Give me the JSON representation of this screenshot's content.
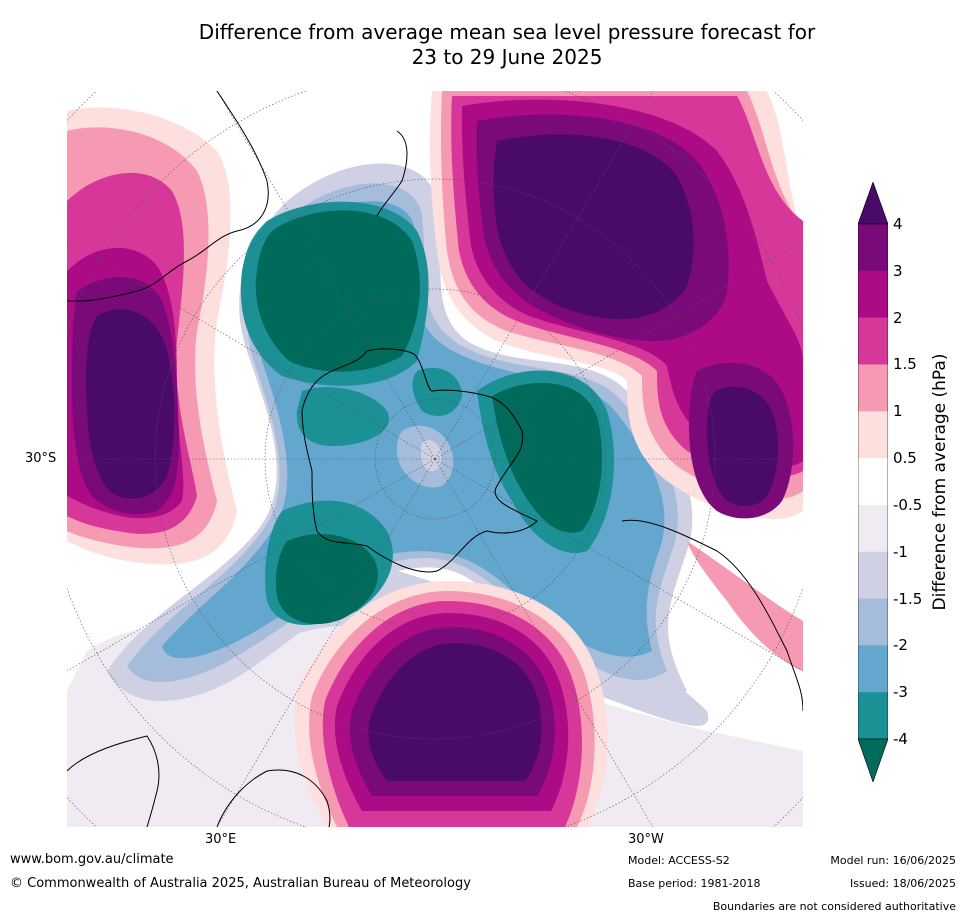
{
  "title_line1": "Difference from average mean sea level pressure forecast for",
  "title_line2": "23 to 29 June 2025",
  "map": {
    "lat_label": "30°S",
    "lon_label_east": "30°E",
    "lon_label_west": "30°W"
  },
  "colorbar": {
    "label": "Difference from average (hPa)",
    "ticks": [
      "4",
      "3",
      "2",
      "1.5",
      "1",
      "0.5",
      "-0.5",
      "-1",
      "-1.5",
      "-2",
      "-3",
      "-4"
    ],
    "colors": [
      "#4a0a6a",
      "#7a0a7a",
      "#ad0a86",
      "#d8379a",
      "#f59ab2",
      "#fde0dd",
      "#ffffff",
      "#f0ebf3",
      "#cfd0e4",
      "#a6bcdb",
      "#63a7cf",
      "#1b9095",
      "#006b5b"
    ]
  },
  "footer": {
    "website": "www.bom.gov.au/climate",
    "copyright": "© Commonwealth of Australia 2025, Australian Bureau of Meteorology",
    "model": "Model: ACCESS-S2",
    "base_period": "Base period: 1981-2018",
    "model_run": "Model run: 16/06/2025",
    "issued": "Issued: 18/06/2025",
    "disclaimer": "Boundaries are not considered authoritative"
  }
}
